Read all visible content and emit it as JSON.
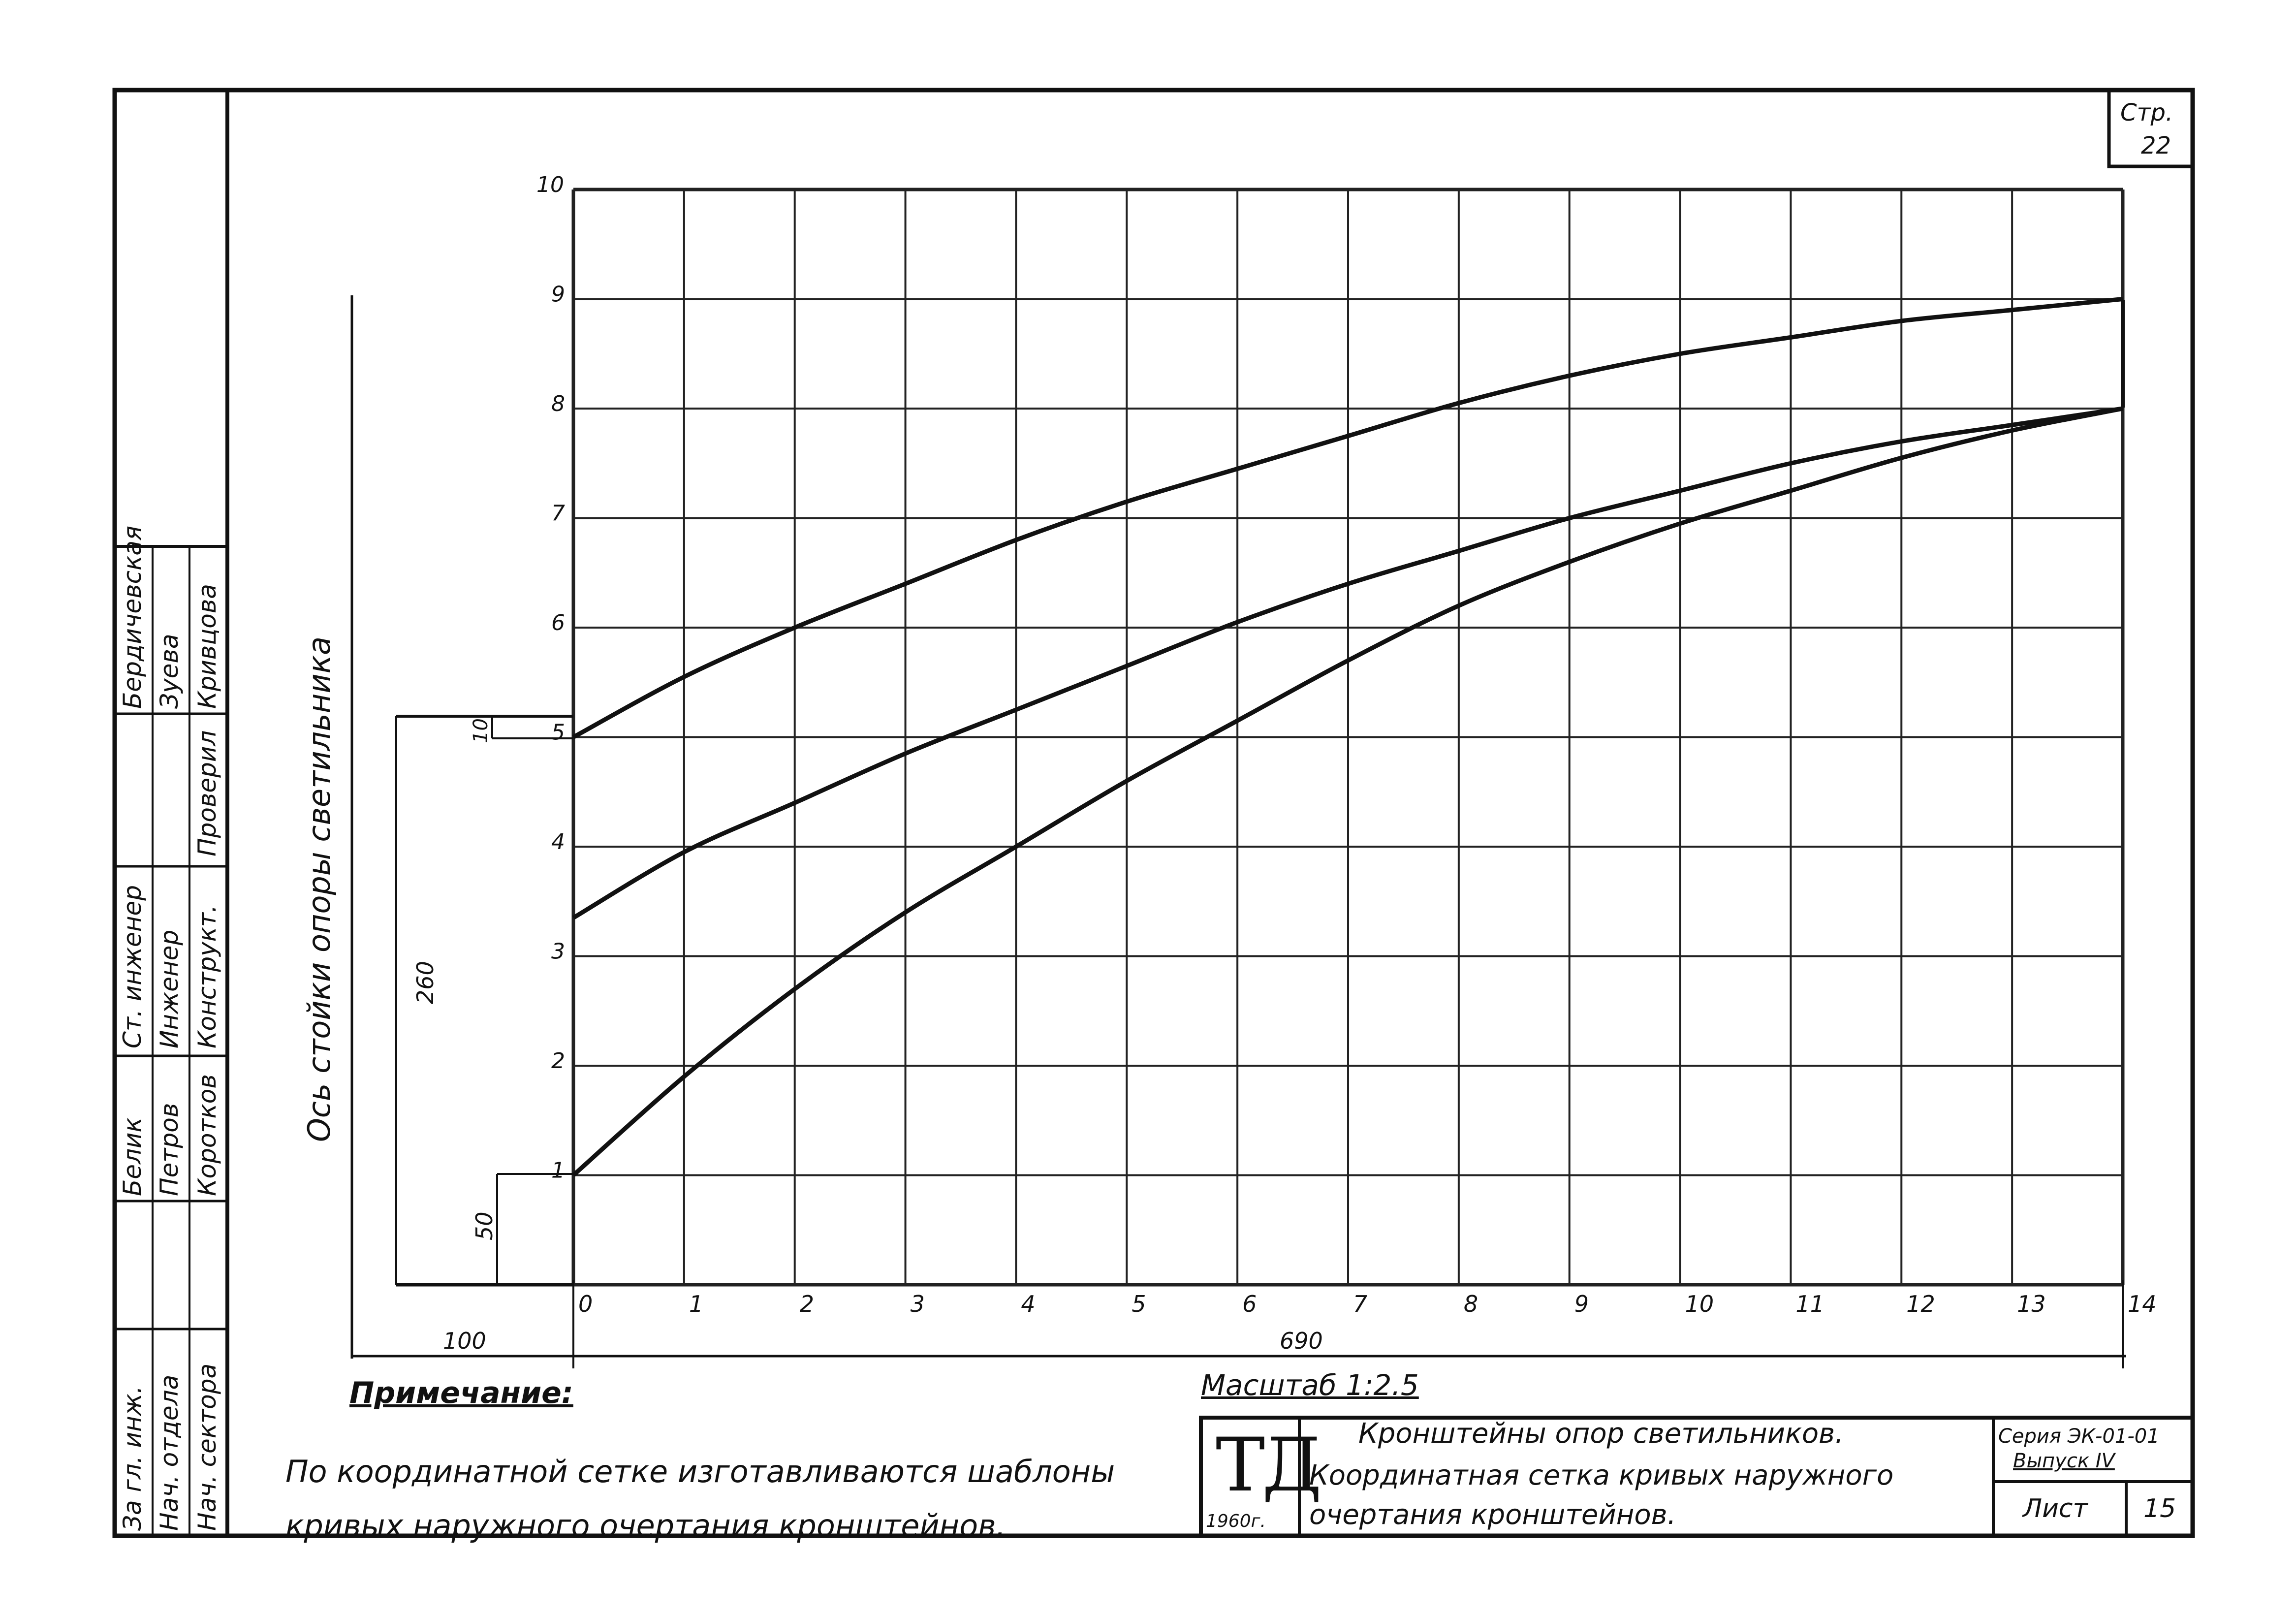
{
  "page": {
    "number_label": "Стр.",
    "number": "22"
  },
  "axis": {
    "side_label": "Ось стойки опоры светильника",
    "x_ticks": [
      "0",
      "1",
      "2",
      "3",
      "4",
      "5",
      "6",
      "7",
      "8",
      "9",
      "10",
      "11",
      "12",
      "13",
      "14"
    ],
    "y_ticks": [
      "1",
      "2",
      "3",
      "4",
      "5",
      "6",
      "7",
      "8",
      "9",
      "10"
    ]
  },
  "dimensions": {
    "left_width": "100",
    "grid_width": "690",
    "height_total": "260",
    "height_bottom": "50",
    "small_gap": "10"
  },
  "chart_data": {
    "type": "line",
    "title": "",
    "xlabel": "",
    "ylabel": "Ось стойки опоры светильника",
    "xlim": [
      0,
      14
    ],
    "ylim": [
      0,
      10
    ],
    "grid": true,
    "series": [
      {
        "x": [
          0,
          1,
          2,
          3,
          4,
          5,
          6,
          7,
          8,
          9,
          10,
          11,
          12,
          13,
          14
        ],
        "y": [
          5.0,
          5.55,
          6.0,
          6.4,
          6.8,
          7.15,
          7.45,
          7.75,
          8.05,
          8.3,
          8.5,
          8.65,
          8.8,
          8.9,
          9.0
        ]
      },
      {
        "x": [
          0,
          1,
          2,
          3,
          4,
          5,
          6,
          7,
          8,
          9,
          10,
          11,
          12,
          13,
          14
        ],
        "y": [
          3.35,
          3.95,
          4.4,
          4.85,
          5.25,
          5.65,
          6.05,
          6.4,
          6.7,
          7.0,
          7.25,
          7.5,
          7.7,
          7.85,
          8.0
        ]
      },
      {
        "x": [
          0,
          1,
          2,
          3,
          4,
          5,
          6,
          7,
          8,
          9,
          10,
          11,
          12,
          13,
          14
        ],
        "y": [
          1.0,
          1.9,
          2.7,
          3.4,
          4.0,
          4.6,
          5.15,
          5.7,
          6.2,
          6.6,
          6.95,
          7.25,
          7.55,
          7.8,
          8.0
        ]
      }
    ]
  },
  "note": {
    "heading": "Примечание:",
    "lines": [
      "По координатной сетке изготавливаются шаблоны",
      "кривых наружного очертания кронштейнов."
    ]
  },
  "scale": "Масштаб 1:2.5",
  "title_block": {
    "logo": "ТД",
    "year": "1960г.",
    "title_lines": [
      "Кронштейны опор светильников.",
      "Координатная сетка кривых наружного",
      "очертания кронштейнов."
    ],
    "series_label": "Серия ЭК-01-01",
    "issue_label": "Выпуск IV",
    "sheet_label": "Лист",
    "sheet_number": "15"
  },
  "stamp": {
    "cells": [
      "За гл. инж.",
      "Нач. отдела",
      "Нач. сектора",
      "Белик",
      "Петров",
      "Коротков",
      "Ст. инженер",
      "Инженер",
      "Конструкт.",
      "Проверил",
      "Бердичевская",
      "Зуева",
      "Кривцова"
    ]
  }
}
